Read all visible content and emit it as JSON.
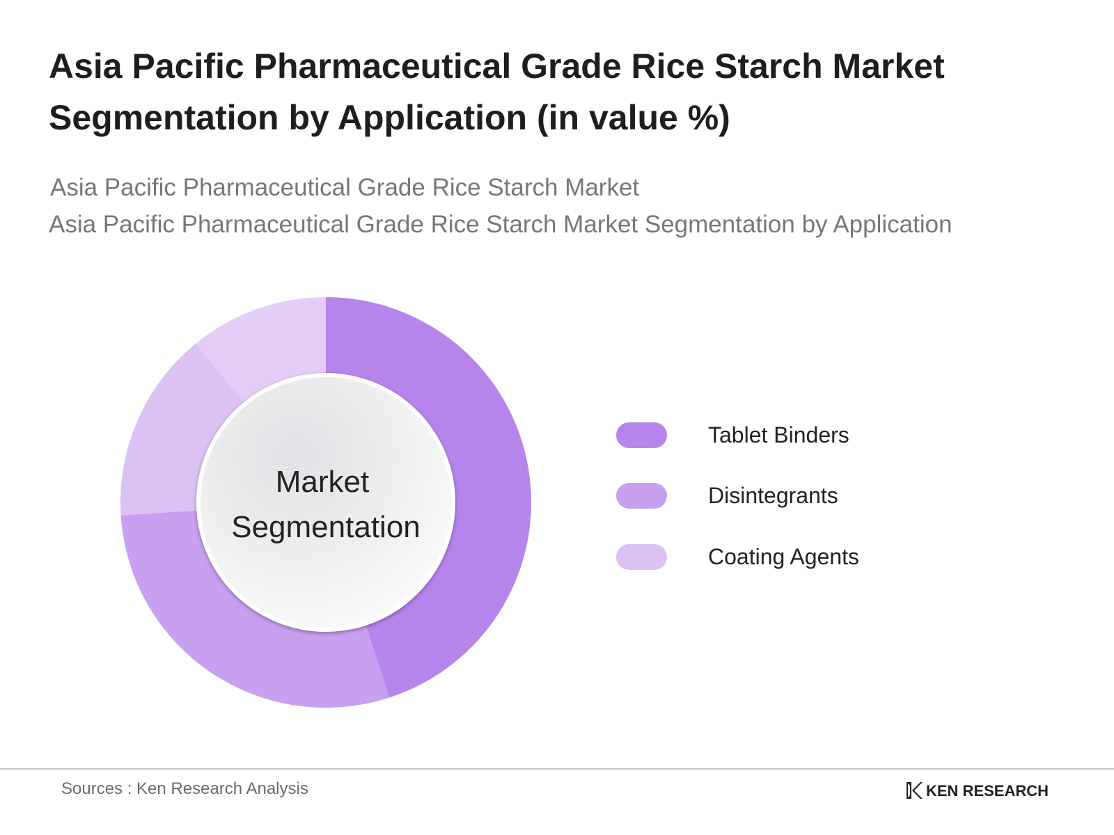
{
  "title": "Asia Pacific Pharmaceutical Grade Rice Starch Market Segmentation by Application  (in value %)",
  "subtitle_line1": "Asia Pacific Pharmaceutical Grade Rice Starch Market",
  "subtitle_line2": "Asia Pacific Pharmaceutical Grade Rice Starch Market Segmentation by Application",
  "center_label_line1": "Market",
  "center_label_line2": "Segmentation",
  "source": "Sources : Ken Research Analysis",
  "brand": "KEN RESEARCH",
  "chart_data": {
    "type": "pie",
    "categories": [
      "Tablet Binders",
      "Disintegrants",
      "Coating Agents"
    ],
    "legend_position": "right",
    "donut": true,
    "slices": [
      {
        "label": "Tablet Binders",
        "value": 45,
        "color": "#b585ec"
      },
      {
        "label": "Disintegrants",
        "value": 29,
        "color": "#c8a0f0"
      },
      {
        "label": "Coating Agents",
        "value": 26,
        "color": "#dcc1f5"
      }
    ],
    "notes_on_coating": "Coating Agents rendered as two adjacent arcs: lower arc then top arc",
    "colors": {
      "tablet_binders": "#b585ec",
      "disintegrants": "#c8a0f0",
      "coating_agents": "#dcc1f5",
      "coating_agents_top": "#e4cef7"
    }
  }
}
